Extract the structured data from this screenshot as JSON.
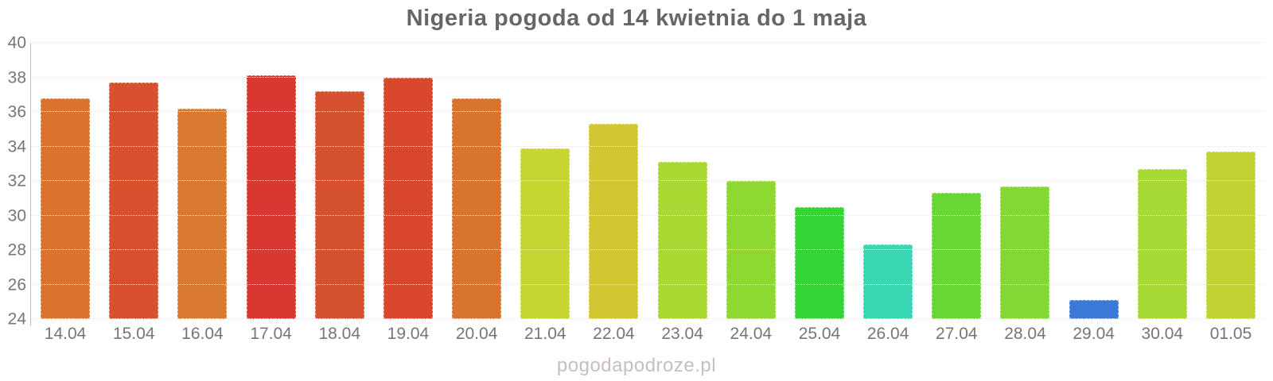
{
  "title": "Nigeria pogoda od 14 kwietnia do 1 maja",
  "watermark": "pogodapodroze.pl",
  "colors": {
    "title_text": "#666666",
    "axis_text": "#767676",
    "grid_line": "#e9e6e3",
    "y_axis_line": "#cfbeb4",
    "watermark_text": "#c9bebd",
    "background": "#ffffff"
  },
  "chart_data": {
    "type": "bar",
    "title": "Nigeria pogoda od 14 kwietnia do 1 maja",
    "xlabel": "",
    "ylabel": "",
    "categories": [
      "14.04",
      "15.04",
      "16.04",
      "17.04",
      "18.04",
      "19.04",
      "20.04",
      "21.04",
      "22.04",
      "23.04",
      "24.04",
      "25.04",
      "26.04",
      "27.04",
      "28.04",
      "29.04",
      "30.04",
      "01.05"
    ],
    "values": [
      36.8,
      37.7,
      36.2,
      38.1,
      37.2,
      38.0,
      36.8,
      33.9,
      35.3,
      33.1,
      32.0,
      30.5,
      28.3,
      31.3,
      31.7,
      25.1,
      32.7,
      33.7
    ],
    "bar_colors": [
      "#d9732d",
      "#d9502f",
      "#da7a30",
      "#d8382f",
      "#d6512f",
      "#d8472e",
      "#d9742e",
      "#c6d52f",
      "#d2c732",
      "#a8d832",
      "#8ed832",
      "#35d535",
      "#38d6b2",
      "#68d734",
      "#84d834",
      "#3b79d9",
      "#a6d934",
      "#c2d434"
    ],
    "ylim": [
      24,
      40
    ],
    "yticks": [
      24,
      26,
      28,
      30,
      32,
      34,
      36,
      38,
      40
    ],
    "grid": "horizontal-dotted",
    "legend": "none"
  }
}
